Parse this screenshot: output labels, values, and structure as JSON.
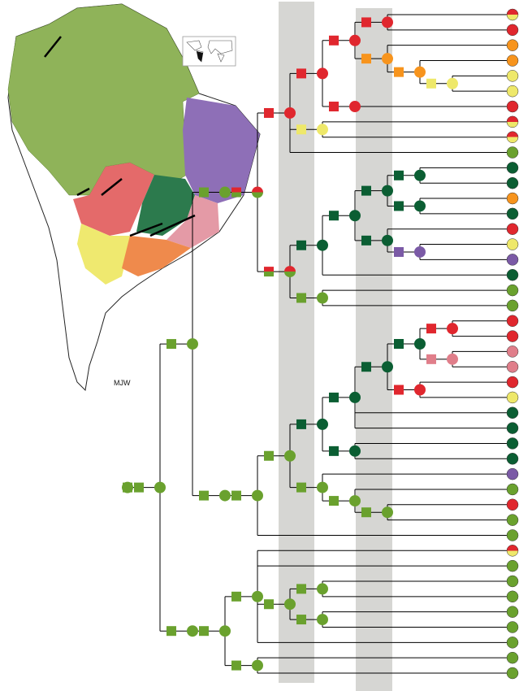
{
  "map": {
    "credit": "MJW"
  }
}
